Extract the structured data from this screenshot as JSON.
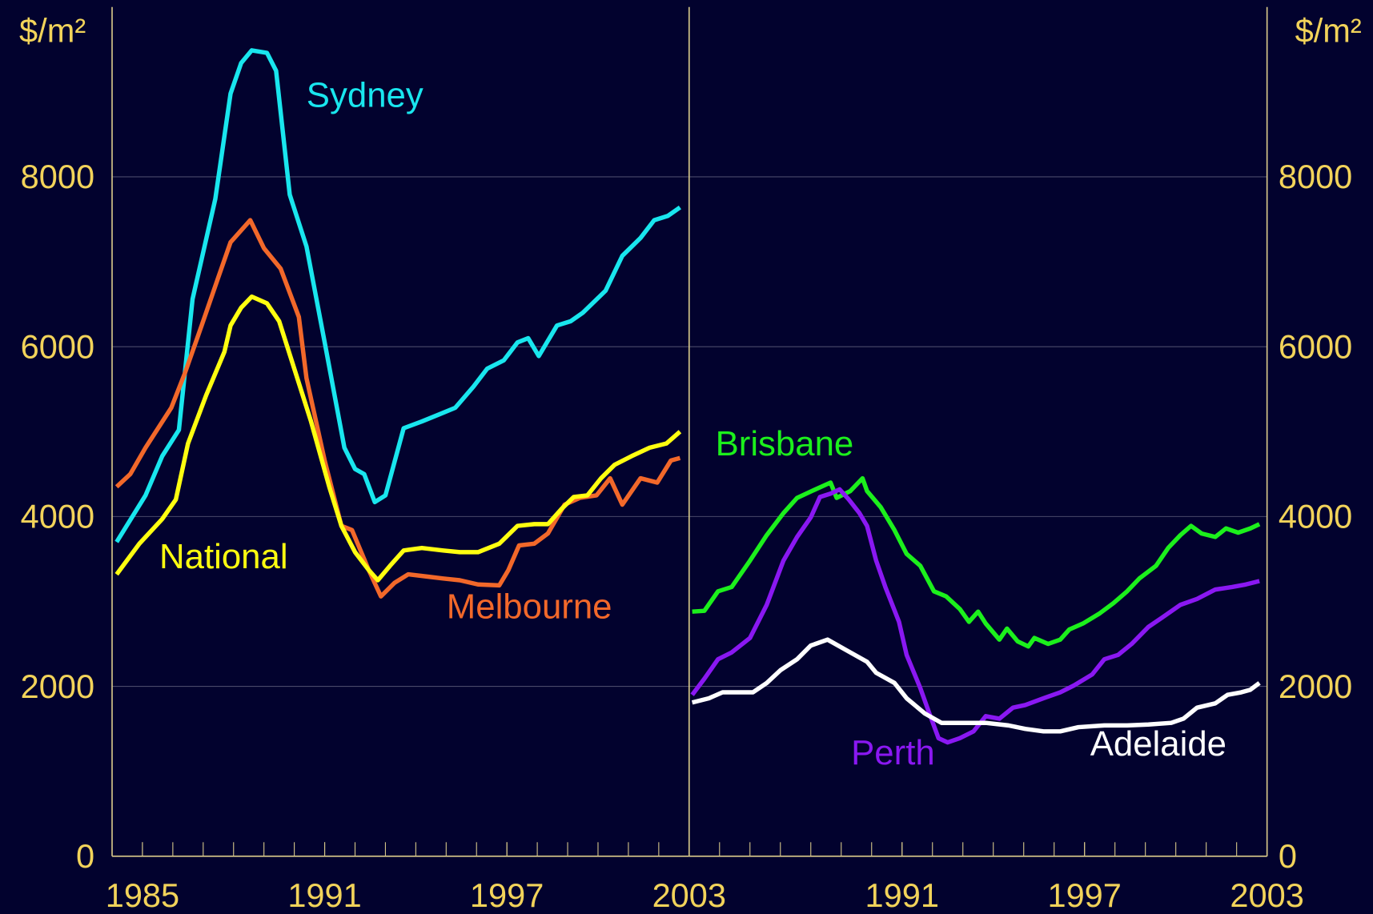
{
  "chart_data": [
    {
      "type": "line",
      "ylabel": "$/m²",
      "yaxis": "left",
      "xlim": [
        1984,
        2003
      ],
      "xticks": [
        1985,
        1991,
        1997,
        2003
      ],
      "xminorticks": [
        1985,
        1986,
        1987,
        1988,
        1989,
        1990,
        1991,
        1992,
        1993,
        1994,
        1995,
        1996,
        1997,
        1998,
        1999,
        2000,
        2001,
        2002
      ],
      "ylim": [
        0,
        10000
      ],
      "yticks": [
        0,
        2000,
        4000,
        6000,
        8000
      ],
      "grid": true,
      "series": [
        {
          "name": "Sydney",
          "color": "#19e6ee",
          "x": [
            1984.15,
            1985.1,
            1985.65,
            1986.2,
            1986.65,
            1987.4,
            1987.9,
            1988.25,
            1988.6,
            1989.1,
            1989.4,
            1989.85,
            1990.4,
            1991,
            1991.65,
            1992,
            1992.3,
            1992.65,
            1993,
            1993.6,
            1994.2,
            1994.75,
            1995.3,
            1995.9,
            1996.35,
            1996.9,
            1997.35,
            1997.7,
            1998.05,
            1998.65,
            1999.1,
            1999.5,
            2000.25,
            2000.8,
            2001.4,
            2001.85,
            2002.3,
            2002.7
          ],
          "values": [
            3700,
            4250,
            4710,
            5020,
            6560,
            7740,
            8980,
            9340,
            9490,
            9460,
            9250,
            7790,
            7180,
            6050,
            4810,
            4560,
            4500,
            4170,
            4250,
            5040,
            5120,
            5200,
            5280,
            5530,
            5740,
            5840,
            6050,
            6100,
            5890,
            6250,
            6300,
            6400,
            6660,
            7070,
            7280,
            7490,
            7540,
            7640
          ]
        },
        {
          "name": "Melbourne",
          "color": "#f2682a",
          "x": [
            1984.15,
            1984.6,
            1985.1,
            1985.95,
            1986.4,
            1986.95,
            1987.5,
            1987.9,
            1988.55,
            1989,
            1989.55,
            1990.15,
            1990.4,
            1991,
            1991.55,
            1991.9,
            1992.45,
            1992.85,
            1993.3,
            1993.75,
            1994.45,
            1994.9,
            1995.45,
            1996.05,
            1996.75,
            1997.05,
            1997.4,
            1997.9,
            1998.35,
            1998.9,
            1999.4,
            1999.95,
            2000.4,
            2000.8,
            2001.4,
            2001.95,
            2002.4,
            2002.7
          ],
          "values": [
            4350,
            4500,
            4810,
            5280,
            5690,
            6250,
            6820,
            7230,
            7490,
            7160,
            6920,
            6350,
            5630,
            4660,
            3890,
            3840,
            3370,
            3060,
            3220,
            3320,
            3290,
            3270,
            3250,
            3200,
            3190,
            3370,
            3660,
            3680,
            3800,
            4140,
            4220,
            4250,
            4450,
            4140,
            4450,
            4400,
            4660,
            4690
          ]
        },
        {
          "name": "National",
          "color": "#ffff10",
          "x": [
            1984.15,
            1984.9,
            1985.65,
            1986.1,
            1986.5,
            1987.1,
            1987.7,
            1987.9,
            1988.25,
            1988.6,
            1989.1,
            1989.5,
            1990,
            1990.55,
            1991.15,
            1991.55,
            1992,
            1992.45,
            1992.75,
            1993.15,
            1993.6,
            1994.2,
            1994.9,
            1995.45,
            1996.05,
            1996.75,
            1997.35,
            1997.9,
            1998.35,
            1998.8,
            1999.2,
            1999.65,
            2000.1,
            2000.55,
            2001.1,
            2001.7,
            2002.25,
            2002.7
          ],
          "values": [
            3320,
            3680,
            3970,
            4200,
            4860,
            5430,
            5940,
            6250,
            6460,
            6590,
            6510,
            6300,
            5740,
            5120,
            4350,
            3890,
            3580,
            3370,
            3250,
            3420,
            3600,
            3630,
            3600,
            3580,
            3580,
            3680,
            3890,
            3910,
            3910,
            4090,
            4230,
            4250,
            4450,
            4610,
            4710,
            4810,
            4860,
            5000
          ]
        }
      ]
    },
    {
      "type": "line",
      "ylabel": "$/m²",
      "yaxis": "right",
      "xlim": [
        1984,
        2003
      ],
      "xticks": [
        1991,
        1997,
        2003
      ],
      "xminorticks": [
        1985,
        1986,
        1987,
        1988,
        1989,
        1990,
        1991,
        1992,
        1993,
        1994,
        1995,
        1996,
        1997,
        1998,
        1999,
        2000,
        2001,
        2002
      ],
      "ylim": [
        0,
        10000
      ],
      "yticks": [
        0,
        2000,
        4000,
        6000,
        8000
      ],
      "grid": true,
      "series": [
        {
          "name": "Brisbane",
          "color": "#1cf01c",
          "x": [
            1984.1,
            1984.5,
            1984.95,
            1985.4,
            1986,
            1986.55,
            1987.1,
            1987.55,
            1988.15,
            1988.65,
            1988.85,
            1989.3,
            1989.7,
            1989.85,
            1990.3,
            1990.75,
            1991.15,
            1991.6,
            1992.05,
            1992.45,
            1992.9,
            1993.2,
            1993.5,
            1993.75,
            1994.2,
            1994.45,
            1994.8,
            1995.15,
            1995.35,
            1995.8,
            1996.2,
            1996.5,
            1996.95,
            1997.5,
            1997.95,
            1998.4,
            1998.8,
            1999.35,
            1999.75,
            2000.15,
            2000.5,
            2000.85,
            2001.3,
            2001.65,
            2002.05,
            2002.45,
            2002.75
          ],
          "values": [
            2880,
            2890,
            3120,
            3170,
            3480,
            3780,
            4040,
            4220,
            4320,
            4400,
            4220,
            4300,
            4450,
            4300,
            4110,
            3840,
            3560,
            3420,
            3120,
            3060,
            2910,
            2760,
            2880,
            2740,
            2550,
            2680,
            2530,
            2470,
            2570,
            2500,
            2550,
            2670,
            2740,
            2860,
            2980,
            3120,
            3270,
            3420,
            3630,
            3780,
            3890,
            3800,
            3760,
            3860,
            3810,
            3860,
            3910
          ]
        },
        {
          "name": "Perth",
          "color": "#8a18f2",
          "x": [
            1984.1,
            1984.5,
            1984.95,
            1985.4,
            1986,
            1986.55,
            1987.1,
            1987.55,
            1988,
            1988.3,
            1988.65,
            1988.95,
            1989.25,
            1989.6,
            1989.85,
            1990.15,
            1990.45,
            1990.9,
            1991.15,
            1991.6,
            1991.9,
            1992.2,
            1992.5,
            1992.9,
            1993.35,
            1993.75,
            1994.2,
            1994.65,
            1995.05,
            1995.65,
            1996.2,
            1996.65,
            1997.25,
            1997.65,
            1998.1,
            1998.55,
            1999.1,
            1999.55,
            2000.15,
            2000.7,
            2001.3,
            2001.85,
            2002.3,
            2002.75
          ],
          "values": [
            1900,
            2090,
            2320,
            2400,
            2570,
            2960,
            3480,
            3760,
            3990,
            4230,
            4270,
            4320,
            4200,
            4040,
            3890,
            3480,
            3170,
            2760,
            2370,
            1980,
            1680,
            1390,
            1340,
            1390,
            1470,
            1650,
            1620,
            1750,
            1780,
            1860,
            1930,
            2010,
            2140,
            2320,
            2370,
            2500,
            2700,
            2810,
            2960,
            3030,
            3140,
            3170,
            3200,
            3240
          ]
        },
        {
          "name": "Adelaide",
          "color": "#ffffff",
          "x": [
            1984.1,
            1984.65,
            1985.1,
            1986.1,
            1986.55,
            1987,
            1987.55,
            1988,
            1988.55,
            1989.15,
            1989.85,
            1990.15,
            1990.75,
            1991.15,
            1991.75,
            1992.3,
            1993.2,
            1993.75,
            1994.5,
            1995.05,
            1995.65,
            1996.2,
            1996.8,
            1997.65,
            1998.4,
            1999.1,
            1999.85,
            2000.25,
            2000.7,
            2001.3,
            2001.7,
            2002.15,
            2002.45,
            2002.75
          ],
          "values": [
            1810,
            1860,
            1930,
            1930,
            2040,
            2190,
            2320,
            2480,
            2550,
            2430,
            2290,
            2160,
            2040,
            1860,
            1680,
            1570,
            1570,
            1570,
            1540,
            1500,
            1470,
            1470,
            1520,
            1540,
            1540,
            1550,
            1570,
            1620,
            1750,
            1800,
            1900,
            1930,
            1960,
            2040
          ]
        }
      ]
    }
  ]
}
